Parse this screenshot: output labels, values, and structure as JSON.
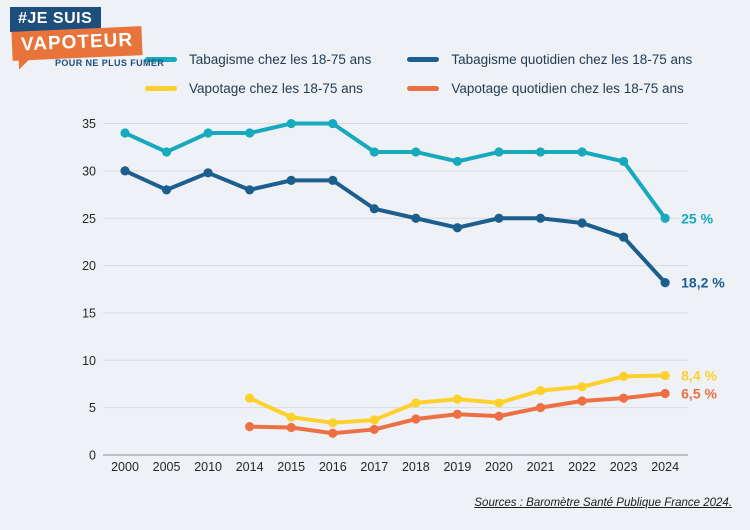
{
  "logo": {
    "line1": "#JE SUIS",
    "line2": "VAPOTEUR",
    "tagline": "POUR NE PLUS FUMER",
    "blue": "#1d4e7c",
    "orange": "#e8743b"
  },
  "source": {
    "text": "Sources : Baromètre Santé Publique France 2024."
  },
  "chart_data": {
    "type": "line",
    "title": "",
    "xlabel": "",
    "ylabel": "",
    "categories": [
      "2000",
      "2005",
      "2010",
      "2014",
      "2015",
      "2016",
      "2017",
      "2018",
      "2019",
      "2020",
      "2021",
      "2022",
      "2023",
      "2024"
    ],
    "yticks": [
      0,
      5,
      10,
      15,
      20,
      25,
      30,
      35
    ],
    "ylim": [
      0,
      35
    ],
    "grid": "horizontal",
    "legend_position": "top",
    "colors": {
      "background": "#eef1f6",
      "gridline": "#d7dbe1",
      "axis": "#aab0ba",
      "tick_text": "#262626"
    },
    "series": [
      {
        "name": "Tabagisme chez les 18-75 ans",
        "color": "#17a9bd",
        "values": [
          34,
          32,
          34,
          34,
          35,
          35,
          32,
          32,
          31,
          32,
          32,
          32,
          31,
          25
        ],
        "end_label": "25 %"
      },
      {
        "name": "Tabagisme quotidien chez les 18-75 ans",
        "color": "#1c5f8f",
        "values": [
          30,
          28,
          29.8,
          28,
          29,
          29,
          26,
          25,
          24,
          25,
          25,
          24.5,
          23,
          18.2
        ],
        "end_label": "18,2 %"
      },
      {
        "name": "Vapotage chez les 18-75 ans",
        "color": "#fdd02c",
        "values": [
          null,
          null,
          null,
          6,
          4,
          3.4,
          3.7,
          5.5,
          5.9,
          5.5,
          6.8,
          7.2,
          8.3,
          8.4
        ],
        "end_label": "8,4 %"
      },
      {
        "name": "Vapotage quotidien chez les 18-75 ans",
        "color": "#ed7044",
        "values": [
          null,
          null,
          null,
          3,
          2.9,
          2.3,
          2.7,
          3.8,
          4.3,
          4.1,
          5,
          5.7,
          6,
          6.5
        ],
        "end_label": "6,5 %"
      }
    ]
  }
}
